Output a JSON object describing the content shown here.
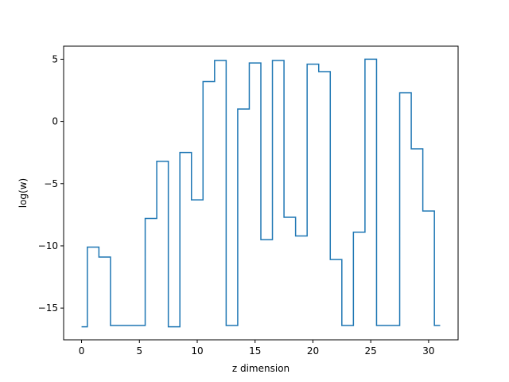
{
  "chart_data": {
    "type": "line",
    "style": "step-mid",
    "title": "",
    "xlabel": "z dimension",
    "ylabel": "log(w)",
    "xlim": [
      -1.55,
      32.55
    ],
    "ylim": [
      -17.55,
      6.05
    ],
    "grid": false,
    "legend": "none",
    "xticks": [
      0,
      5,
      10,
      15,
      20,
      25,
      30
    ],
    "xtick_labels": [
      "0",
      "5",
      "10",
      "15",
      "20",
      "25",
      "30"
    ],
    "yticks": [
      5,
      0,
      -5,
      -10,
      -15
    ],
    "ytick_labels": [
      "5",
      "0",
      "−5",
      "−10",
      "−15"
    ],
    "series": [
      {
        "color": "#1f77b4",
        "x": [
          0,
          1,
          2,
          3,
          4,
          5,
          6,
          7,
          8,
          9,
          10,
          11,
          12,
          13,
          14,
          15,
          16,
          17,
          18,
          19,
          20,
          21,
          22,
          23,
          24,
          25,
          26,
          27,
          28,
          29,
          30,
          31
        ],
        "y": [
          -16.5,
          -10.1,
          -10.9,
          -16.4,
          -16.4,
          -16.4,
          -7.8,
          -3.2,
          -16.5,
          -2.5,
          -6.3,
          3.2,
          4.9,
          -16.4,
          1.0,
          4.7,
          -9.5,
          4.9,
          -7.7,
          -9.2,
          4.6,
          4.0,
          -11.1,
          -16.4,
          -8.9,
          5.0,
          -16.4,
          -16.4,
          2.3,
          -2.2,
          -7.2,
          -16.4
        ]
      }
    ]
  }
}
